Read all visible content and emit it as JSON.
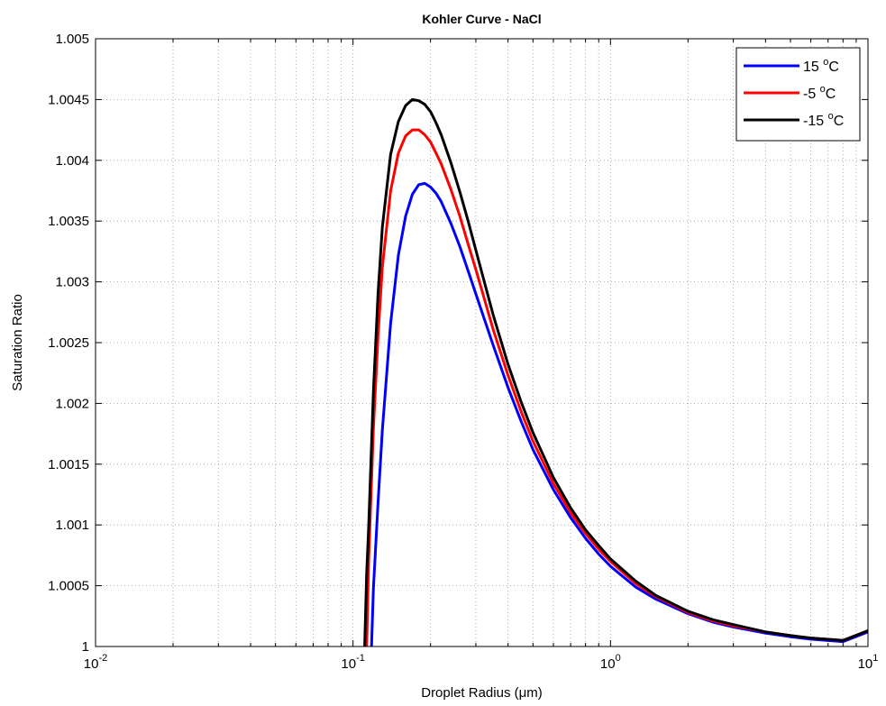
{
  "chart_data": {
    "type": "line",
    "title": "Kohler Curve - NaCl",
    "xlabel": "Droplet Radius (μm)",
    "ylabel": "Saturation Ratio",
    "x_scale": "log",
    "xlim": [
      0.01,
      10
    ],
    "ylim": [
      1.0,
      1.005
    ],
    "grid": true,
    "legend_position": "top-right",
    "x_ticks": [
      {
        "base": "10",
        "exp": "-2"
      },
      {
        "base": "10",
        "exp": "-1"
      },
      {
        "base": "10",
        "exp": "0"
      },
      {
        "base": "10",
        "exp": "1"
      }
    ],
    "y_ticks": [
      "1",
      "1.0005",
      "1.001",
      "1.0015",
      "1.002",
      "1.0025",
      "1.003",
      "1.0035",
      "1.004",
      "1.0045",
      "1.005"
    ],
    "series": [
      {
        "name": "15 °C",
        "legend_value": "15",
        "legend_degree": "o",
        "legend_unit": "C",
        "color": "#0000ff",
        "x": [
          0.118,
          0.12,
          0.125,
          0.13,
          0.14,
          0.15,
          0.16,
          0.17,
          0.18,
          0.19,
          0.2,
          0.21,
          0.22,
          0.24,
          0.26,
          0.28,
          0.3,
          0.35,
          0.4,
          0.45,
          0.5,
          0.6,
          0.7,
          0.8,
          0.9,
          1.0,
          1.25,
          1.5,
          2.0,
          2.5,
          3.0,
          4.0,
          5.0,
          6.0,
          8.0,
          10.0
        ],
        "y": [
          1.0,
          1.00048,
          1.00118,
          1.00178,
          1.00266,
          1.00322,
          1.00354,
          1.00372,
          1.0038,
          1.00381,
          1.00378,
          1.00373,
          1.00366,
          1.00348,
          1.00329,
          1.00309,
          1.0029,
          1.00248,
          1.00213,
          1.00185,
          1.00162,
          1.00129,
          1.00106,
          1.00089,
          1.00076,
          1.00066,
          1.00049,
          1.00039,
          1.00027,
          1.0002,
          1.00016,
          1.00011,
          1.00008,
          1.00006,
          1.00004,
          1.00012
        ]
      },
      {
        "name": "-5 °C",
        "legend_value": "-5",
        "legend_degree": "o",
        "legend_unit": "C",
        "color": "#ff0000",
        "x": [
          0.113,
          0.115,
          0.12,
          0.125,
          0.13,
          0.14,
          0.15,
          0.16,
          0.17,
          0.18,
          0.19,
          0.2,
          0.21,
          0.22,
          0.24,
          0.26,
          0.28,
          0.3,
          0.35,
          0.4,
          0.45,
          0.5,
          0.6,
          0.7,
          0.8,
          0.9,
          1.0,
          1.25,
          1.5,
          2.0,
          2.5,
          3.0,
          4.0,
          5.0,
          6.0,
          8.0,
          10.0
        ],
        "y": [
          1.0,
          1.0007,
          1.0018,
          1.00255,
          1.00312,
          1.00375,
          1.00406,
          1.0042,
          1.00425,
          1.00425,
          1.00421,
          1.00415,
          1.00406,
          1.00397,
          1.00376,
          1.00354,
          1.00331,
          1.0031,
          1.00261,
          1.00223,
          1.00193,
          1.00169,
          1.00134,
          1.0011,
          1.00093,
          1.0008,
          1.0007,
          1.00052,
          1.00041,
          1.00028,
          1.00021,
          1.00017,
          1.00012,
          1.00009,
          1.00007,
          1.00005,
          1.00013
        ]
      },
      {
        "name": "-15 °C",
        "legend_value": "-15",
        "legend_degree": "o",
        "legend_unit": "C",
        "color": "#000000",
        "x": [
          0.111,
          0.113,
          0.115,
          0.12,
          0.125,
          0.13,
          0.14,
          0.15,
          0.16,
          0.17,
          0.18,
          0.19,
          0.2,
          0.21,
          0.22,
          0.24,
          0.26,
          0.28,
          0.3,
          0.35,
          0.4,
          0.45,
          0.5,
          0.6,
          0.7,
          0.8,
          0.9,
          1.0,
          1.25,
          1.5,
          2.0,
          2.5,
          3.0,
          4.0,
          5.0,
          6.0,
          8.0,
          10.0
        ],
        "y": [
          1.0,
          1.0006,
          1.00098,
          1.0021,
          1.0029,
          1.00345,
          1.00405,
          1.00432,
          1.00445,
          1.0045,
          1.00449,
          1.00446,
          1.0044,
          1.00431,
          1.00421,
          1.00398,
          1.00374,
          1.0035,
          1.00326,
          1.00273,
          1.00232,
          1.00201,
          1.00176,
          1.00139,
          1.00114,
          1.00096,
          1.00083,
          1.00072,
          1.00054,
          1.00042,
          1.00029,
          1.00022,
          1.00018,
          1.00012,
          1.00009,
          1.00007,
          1.00005,
          1.00013
        ]
      }
    ]
  }
}
